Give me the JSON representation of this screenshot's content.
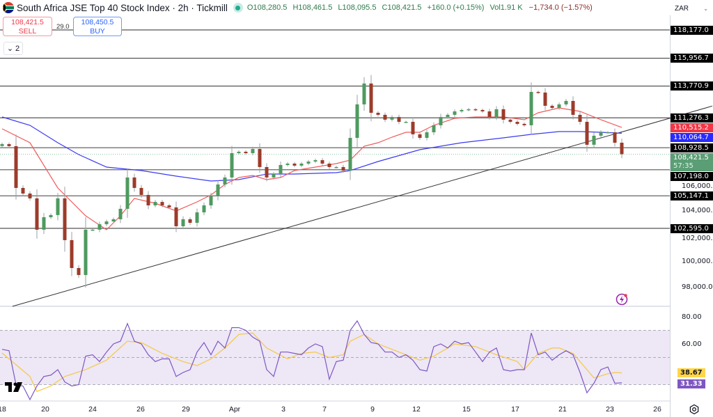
{
  "header": {
    "title": "South Africa JSE Top 40 Stock Index · 2h · Tickmill",
    "open_label": "O",
    "open": "108,280.5",
    "high_label": "H",
    "high": "108,461.5",
    "low_label": "L",
    "low": "108,095.5",
    "close_label": "C",
    "close": "108,421.5",
    "change": "+160.0 (+0.15%)",
    "volume_label": "Vol",
    "volume": "1.91 K",
    "indicator_change": "−1,734.0 (−1.57%)"
  },
  "trade": {
    "sell_price": "108,421.5",
    "sell_label": "SELL",
    "spread": "29.0",
    "buy_price": "108,450.5",
    "buy_label": "BUY"
  },
  "collapse_count": "2",
  "currency": "ZAR",
  "colors": {
    "up": "#4e9a5f",
    "down": "#9c3b2a",
    "ma_fast": "#f05a5a",
    "ma_slow": "#3a3af0",
    "rsi": "#7e57c2",
    "rsi_ma": "#f5c842",
    "rsi_band": "#ede7f6"
  },
  "chart_data": {
    "type": "candlestick",
    "title": "South Africa JSE Top 40 Stock Index · 2h · Tickmill",
    "ylim": [
      96300,
      119000
    ],
    "closes": [
      109210,
      109050,
      105770,
      105330,
      104950,
      102490,
      103470,
      103640,
      104950,
      101670,
      99480,
      98930,
      102490,
      102490,
      102920,
      103140,
      103310,
      104130,
      106590,
      105770,
      105220,
      104400,
      104670,
      104400,
      104240,
      102760,
      103310,
      103030,
      103850,
      104400,
      105110,
      106040,
      106590,
      108500,
      108610,
      108500,
      108830,
      107410,
      106590,
      106860,
      107570,
      107680,
      107520,
      107680,
      107840,
      107950,
      107680,
      107410,
      107410,
      107130,
      109700,
      112330,
      113970,
      111670,
      111510,
      111130,
      111340,
      110960,
      110960,
      109980,
      109700,
      110140,
      110690,
      111340,
      111510,
      111780,
      111890,
      111950,
      111890,
      111780,
      111340,
      111950,
      111130,
      110960,
      110800,
      110690,
      113310,
      113260,
      112220,
      112050,
      112330,
      112600,
      111510,
      110960,
      109160,
      109870,
      110140,
      110140,
      109320,
      108421.5
    ],
    "ma_fast": [
      [
        0,
        110414
      ],
      [
        4,
        109321
      ],
      [
        8,
        105767
      ],
      [
        12,
        103581
      ],
      [
        15,
        102487
      ],
      [
        17,
        103581
      ],
      [
        19,
        104947
      ],
      [
        22,
        104565
      ],
      [
        25,
        103964
      ],
      [
        28,
        104674
      ],
      [
        30,
        105221
      ],
      [
        32,
        106040
      ],
      [
        34,
        106587
      ],
      [
        36,
        106751
      ],
      [
        38,
        106423
      ],
      [
        40,
        106587
      ],
      [
        42,
        107134
      ],
      [
        45,
        107407
      ],
      [
        48,
        107681
      ],
      [
        50,
        107954
      ],
      [
        52,
        109047
      ],
      [
        54,
        109321
      ],
      [
        56,
        109758
      ],
      [
        58,
        110141
      ],
      [
        60,
        110141
      ],
      [
        62,
        110687
      ],
      [
        65,
        111234
      ],
      [
        68,
        111344
      ],
      [
        72,
        111344
      ],
      [
        75,
        111125
      ],
      [
        77,
        111672
      ],
      [
        80,
        112054
      ],
      [
        83,
        111781
      ],
      [
        86,
        111125
      ],
      [
        89,
        110515.2
      ]
    ],
    "ma_slow": [
      [
        0,
        111343
      ],
      [
        4,
        110687
      ],
      [
        8,
        109321
      ],
      [
        11,
        108391
      ],
      [
        15,
        107407
      ],
      [
        20,
        107134
      ],
      [
        25,
        106697
      ],
      [
        30,
        106314
      ],
      [
        34,
        106423
      ],
      [
        38,
        106861
      ],
      [
        42,
        106861
      ],
      [
        48,
        106970
      ],
      [
        50,
        107134
      ],
      [
        54,
        107844
      ],
      [
        60,
        108773
      ],
      [
        66,
        109321
      ],
      [
        72,
        109703
      ],
      [
        76,
        109977
      ],
      [
        80,
        110196
      ],
      [
        83,
        110196
      ],
      [
        86,
        110141
      ],
      [
        89,
        110064.7
      ]
    ],
    "trendline": [
      [
        1.5,
        96474
      ],
      [
        102,
        112200
      ]
    ],
    "horizontal_levels": [
      "118,177.0",
      "115,956.7",
      "113,770.9",
      "111,276.3",
      "108,928.5",
      "107,198.0",
      "105,147.1",
      "102,595.0"
    ],
    "horizontal_level_values": [
      118177.0,
      115956.7,
      113770.9,
      111276.3,
      108928.5,
      107198.0,
      105147.1,
      102595.0
    ],
    "y_ticks": [
      "106,000.0",
      "104,000.0",
      "102,000.0",
      "100,000.0",
      "98,000.0"
    ],
    "y_tick_values": [
      106000,
      104000,
      102000,
      100000,
      98000
    ],
    "ma_fast_label": "110,515.2",
    "ma_slow_label": "110,064.7",
    "last_price_label": "108,421.5",
    "countdown": "57:35",
    "x_ticks": [
      "18",
      "20",
      "24",
      "26",
      "29",
      "Apr",
      "3",
      "7",
      "9",
      "12",
      "15",
      "17",
      "21",
      "23",
      "26"
    ],
    "rsi": {
      "ylim": [
        10,
        85
      ],
      "levels": [
        70,
        50,
        30
      ],
      "y_ticks": [
        "80.00",
        "60.00"
      ],
      "y_tick_values": [
        80,
        60
      ],
      "values": [
        56,
        55,
        30,
        29,
        19,
        29,
        36,
        37,
        41,
        32,
        29,
        30,
        51,
        52,
        47,
        54,
        60,
        62,
        75,
        62,
        60,
        52,
        47,
        49,
        49,
        36,
        39,
        41,
        54,
        61,
        52,
        62,
        57,
        72,
        72,
        70,
        65,
        62,
        41,
        36,
        54,
        54,
        53,
        52,
        57,
        60,
        58,
        34,
        47,
        48,
        70,
        77,
        67,
        61,
        60,
        54,
        54,
        50,
        52,
        48,
        41,
        40,
        58,
        60,
        57,
        62,
        60,
        61,
        54,
        47,
        54,
        57,
        41,
        40,
        41,
        41,
        68,
        52,
        54,
        48,
        52,
        55,
        52,
        39,
        24,
        31,
        41,
        43,
        31,
        31.33
      ],
      "ma": [
        [
          0,
          53.3
        ],
        [
          4,
          36
        ],
        [
          5,
          25
        ],
        [
          7,
          29
        ],
        [
          9,
          36
        ],
        [
          12,
          41
        ],
        [
          15,
          48
        ],
        [
          18,
          62
        ],
        [
          20,
          61
        ],
        [
          23,
          53
        ],
        [
          26,
          47
        ],
        [
          28,
          44
        ],
        [
          30,
          49
        ],
        [
          32,
          57
        ],
        [
          34,
          67
        ],
        [
          36,
          68
        ],
        [
          38,
          57
        ],
        [
          41,
          49
        ],
        [
          43,
          53
        ],
        [
          45,
          54
        ],
        [
          47,
          50
        ],
        [
          49,
          52
        ],
        [
          50,
          62
        ],
        [
          52,
          67
        ],
        [
          54,
          60
        ],
        [
          57,
          54
        ],
        [
          60,
          48
        ],
        [
          62,
          51
        ],
        [
          65,
          60
        ],
        [
          68,
          58
        ],
        [
          71,
          52
        ],
        [
          74,
          47
        ],
        [
          75,
          41
        ],
        [
          77,
          53
        ],
        [
          79,
          57
        ],
        [
          80,
          57
        ],
        [
          82,
          53
        ],
        [
          84,
          41
        ],
        [
          85,
          35
        ],
        [
          87,
          38
        ],
        [
          88,
          39
        ],
        [
          89,
          38.67
        ]
      ],
      "value_label": "31.33",
      "ma_label": "38.67"
    }
  }
}
